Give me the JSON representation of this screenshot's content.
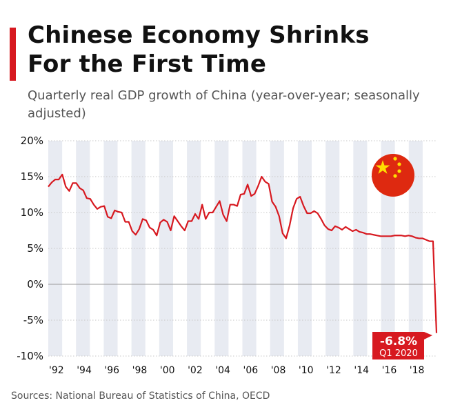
{
  "header": {
    "title_line1": "Chinese Economy Shrinks",
    "title_line2": "For the First Time",
    "subtitle": "Quarterly real GDP growth of China (year-over-year; seasonally adjusted)"
  },
  "footer": {
    "source": "Sources: National Bureau of Statistics of China, OECD"
  },
  "colors": {
    "accent": "#d71920",
    "band": "#e8ebf2",
    "grid": "#c7c7c7",
    "line": "#d71920"
  },
  "icons": {
    "flag": "china-flag-icon"
  },
  "annotation": {
    "value": "-6.8%",
    "label": "Q1 2020"
  },
  "chart_data": {
    "type": "line",
    "title": "Chinese Economy Shrinks For the First Time",
    "subtitle": "Quarterly real GDP growth of China (year-over-year; seasonally adjusted)",
    "xlabel": "",
    "ylabel": "",
    "ylim": [
      -10,
      20
    ],
    "yticks": [
      20,
      15,
      10,
      5,
      0,
      -5,
      -10
    ],
    "ytick_labels": [
      "20%",
      "15%",
      "10%",
      "5%",
      "0%",
      "-5%",
      "-10%"
    ],
    "xticks": [
      "'92",
      "'94",
      "'96",
      "'98",
      "'00",
      "'02",
      "'04",
      "'06",
      "'08",
      "'10",
      "'12",
      "'14",
      "'16",
      "'18"
    ],
    "x_start_year": 1992,
    "x_end_year": 2020,
    "grid": true,
    "series": [
      {
        "name": "Real GDP growth (YoY)",
        "start": "Q1 1992",
        "values": [
          13.6,
          14.2,
          14.6,
          14.6,
          15.3,
          13.6,
          13.0,
          14.1,
          14.1,
          13.4,
          13.1,
          12.0,
          11.9,
          11.1,
          10.5,
          10.8,
          10.9,
          9.4,
          9.2,
          10.3,
          10.1,
          10.0,
          8.7,
          8.7,
          7.4,
          6.9,
          7.7,
          9.1,
          8.9,
          7.9,
          7.6,
          6.8,
          8.6,
          9.0,
          8.7,
          7.5,
          9.5,
          8.8,
          8.1,
          7.5,
          8.8,
          8.8,
          9.8,
          9.1,
          11.1,
          9.1,
          10.0,
          10.0,
          10.8,
          11.6,
          9.7,
          8.8,
          11.1,
          11.1,
          10.9,
          12.5,
          12.6,
          13.9,
          12.3,
          12.6,
          13.7,
          15.0,
          14.3,
          14.0,
          11.5,
          10.8,
          9.5,
          7.1,
          6.4,
          8.2,
          10.6,
          11.9,
          12.2,
          10.9,
          9.9,
          9.9,
          10.2,
          9.9,
          9.1,
          8.2,
          7.7,
          7.5,
          8.1,
          7.9,
          7.6,
          8.0,
          7.7,
          7.4,
          7.6,
          7.3,
          7.2,
          7.0,
          7.0,
          6.9,
          6.8,
          6.7,
          6.7,
          6.7,
          6.7,
          6.8,
          6.8,
          6.8,
          6.7,
          6.8,
          6.7,
          6.5,
          6.4,
          6.4,
          6.2,
          6.0,
          6.0,
          -6.8
        ]
      }
    ],
    "annotations": [
      {
        "text": "-6.8%",
        "subtext": "Q1 2020",
        "value": -6.8
      }
    ]
  }
}
